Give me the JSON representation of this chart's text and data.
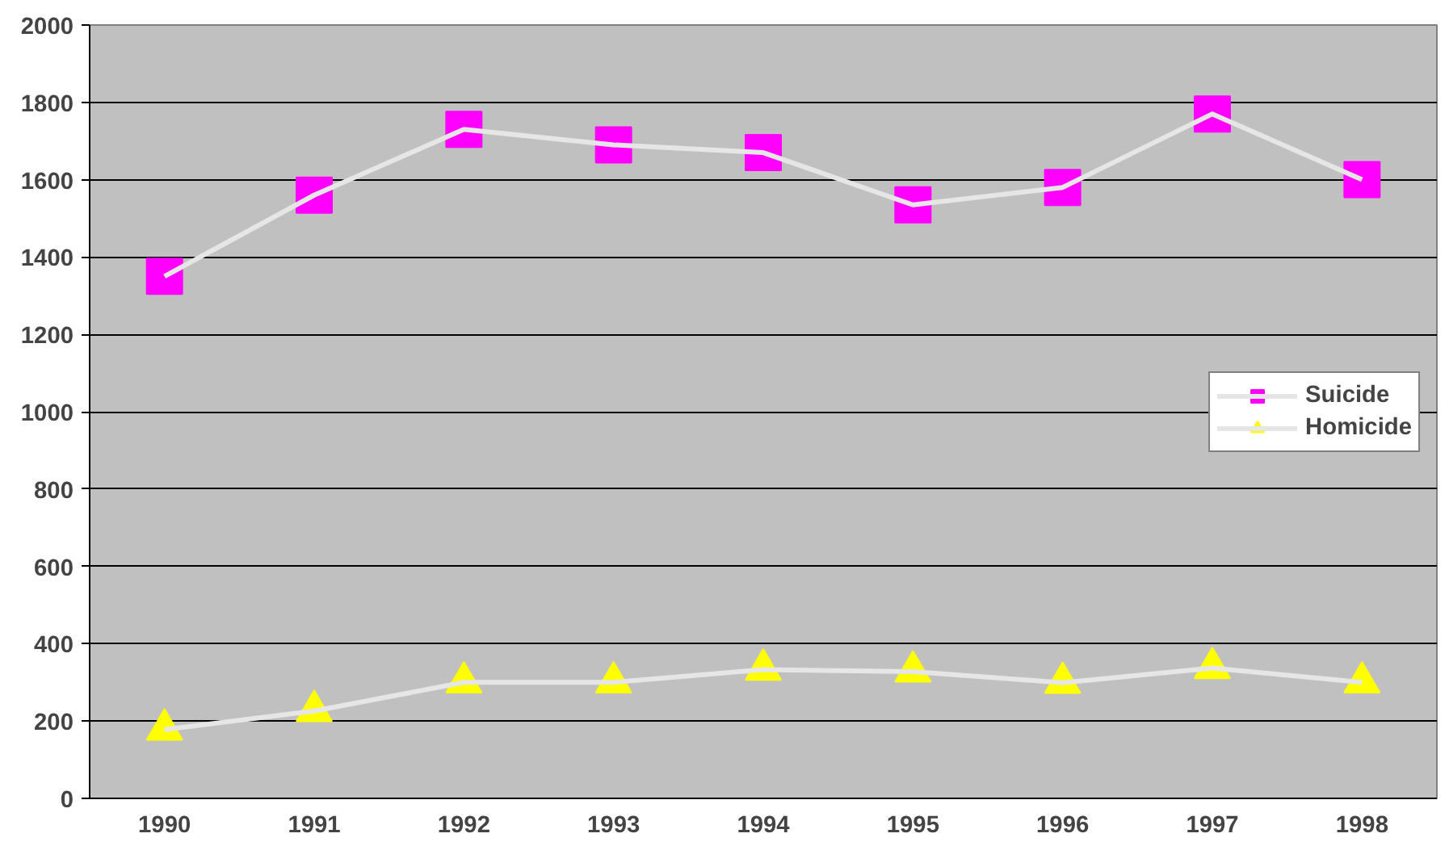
{
  "chart_data": {
    "type": "line",
    "categories": [
      "1990",
      "1991",
      "1992",
      "1993",
      "1994",
      "1995",
      "1996",
      "1997",
      "1998"
    ],
    "series": [
      {
        "name": "Suicide",
        "color": "#ff00ff",
        "marker": "square",
        "values": [
          1350,
          1560,
          1730,
          1690,
          1670,
          1535,
          1580,
          1770,
          1600
        ]
      },
      {
        "name": "Homicide",
        "color": "#ffff00",
        "marker": "triangle",
        "values": [
          178,
          226,
          300,
          300,
          333,
          328,
          299,
          337,
          300
        ]
      }
    ],
    "ylim": [
      0,
      2000
    ],
    "yticks": [
      0,
      200,
      400,
      600,
      800,
      1000,
      1200,
      1400,
      1600,
      1800,
      2000
    ],
    "grid": "y",
    "legend": "right"
  }
}
